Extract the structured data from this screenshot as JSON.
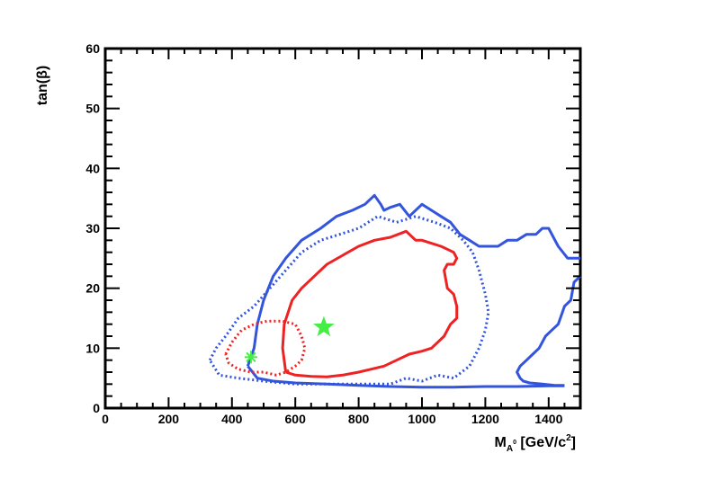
{
  "chart_data": {
    "type": "line",
    "title": "",
    "xlabel": {
      "main": "M",
      "sub": "A",
      "sup_on_sub": "0",
      "units": " [GeV/c",
      "units_sup": "2",
      "units_close": "]"
    },
    "ylabel": "tan(β)",
    "xlim": [
      0,
      1500
    ],
    "ylim": [
      0,
      60
    ],
    "x_ticks": [
      0,
      200,
      400,
      600,
      800,
      1000,
      1200,
      1400
    ],
    "y_ticks": [
      0,
      10,
      20,
      30,
      40,
      50,
      60
    ],
    "x_tick_labels": [
      "0",
      "200",
      "400",
      "600",
      "800",
      "1000",
      "1200",
      "1400"
    ],
    "y_tick_labels": [
      "0",
      "10",
      "20",
      "30",
      "40",
      "50",
      "60"
    ],
    "grid": false,
    "series": [
      {
        "style": "solid",
        "color": "#3355dd",
        "points": [
          [
            450,
            7
          ],
          [
            470,
            10
          ],
          [
            480,
            14
          ],
          [
            500,
            18
          ],
          [
            530,
            22
          ],
          [
            570,
            25
          ],
          [
            620,
            28
          ],
          [
            680,
            30
          ],
          [
            730,
            32
          ],
          [
            780,
            33
          ],
          [
            820,
            34
          ],
          [
            850,
            35.5
          ],
          [
            870,
            34
          ],
          [
            880,
            33
          ],
          [
            900,
            33.5
          ],
          [
            930,
            34
          ],
          [
            960,
            32
          ],
          [
            1000,
            34
          ],
          [
            1030,
            33
          ],
          [
            1060,
            32
          ],
          [
            1090,
            31
          ],
          [
            1120,
            29
          ],
          [
            1150,
            28
          ],
          [
            1180,
            27
          ],
          [
            1210,
            27
          ],
          [
            1240,
            27
          ],
          [
            1270,
            28
          ],
          [
            1300,
            28
          ],
          [
            1330,
            29
          ],
          [
            1360,
            29
          ],
          [
            1380,
            30
          ],
          [
            1400,
            30
          ],
          [
            1430,
            27
          ],
          [
            1460,
            25
          ],
          [
            1500,
            25
          ]
        ]
      },
      {
        "style": "solid",
        "color": "#3355dd",
        "points": [
          [
            450,
            7
          ],
          [
            480,
            5
          ],
          [
            530,
            4.5
          ],
          [
            600,
            4.2
          ],
          [
            700,
            4
          ],
          [
            800,
            3.8
          ],
          [
            900,
            3.6
          ],
          [
            1000,
            3.5
          ],
          [
            1100,
            3.5
          ],
          [
            1200,
            3.6
          ],
          [
            1300,
            3.6
          ],
          [
            1400,
            3.7
          ],
          [
            1450,
            3.7
          ]
        ]
      },
      {
        "style": "solid",
        "color": "#3355dd",
        "points": [
          [
            1500,
            22
          ],
          [
            1480,
            21
          ],
          [
            1470,
            18
          ],
          [
            1450,
            17
          ],
          [
            1430,
            14
          ],
          [
            1410,
            13
          ],
          [
            1390,
            12
          ],
          [
            1370,
            10
          ],
          [
            1350,
            9
          ],
          [
            1330,
            8
          ],
          [
            1310,
            7
          ],
          [
            1300,
            6
          ],
          [
            1310,
            5
          ],
          [
            1320,
            4.5
          ],
          [
            1340,
            4.2
          ],
          [
            1380,
            4
          ],
          [
            1420,
            3.8
          ],
          [
            1450,
            3.8
          ]
        ]
      },
      {
        "style": "dotted",
        "color": "#3355dd",
        "points": [
          [
            330,
            8
          ],
          [
            350,
            10
          ],
          [
            380,
            12
          ],
          [
            420,
            15
          ],
          [
            470,
            17
          ],
          [
            520,
            20
          ],
          [
            570,
            23
          ],
          [
            620,
            26
          ],
          [
            680,
            28
          ],
          [
            740,
            29
          ],
          [
            800,
            30
          ],
          [
            860,
            32
          ],
          [
            920,
            31
          ],
          [
            980,
            32
          ],
          [
            1040,
            31
          ],
          [
            1090,
            30
          ],
          [
            1130,
            28
          ],
          [
            1160,
            26
          ],
          [
            1180,
            23
          ],
          [
            1200,
            19
          ],
          [
            1210,
            16
          ],
          [
            1200,
            13
          ],
          [
            1180,
            10
          ],
          [
            1150,
            7
          ],
          [
            1100,
            5
          ],
          [
            1050,
            5.5
          ],
          [
            1000,
            4.5
          ],
          [
            950,
            5
          ],
          [
            900,
            4
          ],
          [
            800,
            4
          ],
          [
            700,
            4
          ],
          [
            600,
            4
          ],
          [
            500,
            4.5
          ],
          [
            420,
            5
          ],
          [
            360,
            5.5
          ],
          [
            330,
            8
          ]
        ]
      },
      {
        "style": "solid",
        "color": "#ee2222",
        "points": [
          [
            570,
            6
          ],
          [
            560,
            10
          ],
          [
            565,
            14
          ],
          [
            590,
            18
          ],
          [
            620,
            20
          ],
          [
            660,
            22
          ],
          [
            700,
            24
          ],
          [
            750,
            25.5
          ],
          [
            800,
            27
          ],
          [
            850,
            28
          ],
          [
            900,
            28.5
          ],
          [
            950,
            29.5
          ],
          [
            980,
            28
          ],
          [
            1000,
            28
          ],
          [
            1030,
            27.5
          ],
          [
            1060,
            27
          ],
          [
            1080,
            26.5
          ],
          [
            1100,
            26
          ],
          [
            1110,
            25
          ],
          [
            1100,
            24
          ],
          [
            1080,
            24
          ],
          [
            1070,
            23
          ],
          [
            1080,
            20
          ],
          [
            1100,
            19
          ],
          [
            1110,
            17
          ],
          [
            1110,
            15
          ],
          [
            1090,
            14
          ],
          [
            1070,
            12
          ],
          [
            1050,
            11
          ],
          [
            1030,
            10
          ],
          [
            1000,
            9.5
          ],
          [
            960,
            9
          ],
          [
            920,
            8
          ],
          [
            880,
            7
          ],
          [
            840,
            6.5
          ],
          [
            800,
            6
          ],
          [
            750,
            5.5
          ],
          [
            700,
            5.2
          ],
          [
            650,
            5.3
          ],
          [
            600,
            5.5
          ],
          [
            570,
            6
          ]
        ]
      },
      {
        "style": "dotted",
        "color": "#ee2222",
        "points": [
          [
            380,
            9
          ],
          [
            400,
            11
          ],
          [
            430,
            13
          ],
          [
            470,
            14
          ],
          [
            510,
            14.5
          ],
          [
            560,
            14.5
          ],
          [
            600,
            14
          ],
          [
            620,
            12
          ],
          [
            630,
            10
          ],
          [
            620,
            8
          ],
          [
            600,
            7
          ],
          [
            570,
            6
          ],
          [
            540,
            5.5
          ],
          [
            500,
            6
          ],
          [
            460,
            6
          ],
          [
            420,
            6.5
          ],
          [
            390,
            7.5
          ],
          [
            380,
            9
          ]
        ]
      }
    ],
    "markers": [
      {
        "type": "star",
        "x": 690,
        "y": 13.5,
        "color": "#44ee44"
      },
      {
        "type": "asterisk",
        "x": 460,
        "y": 8.5,
        "color": "#44ee44"
      }
    ]
  }
}
